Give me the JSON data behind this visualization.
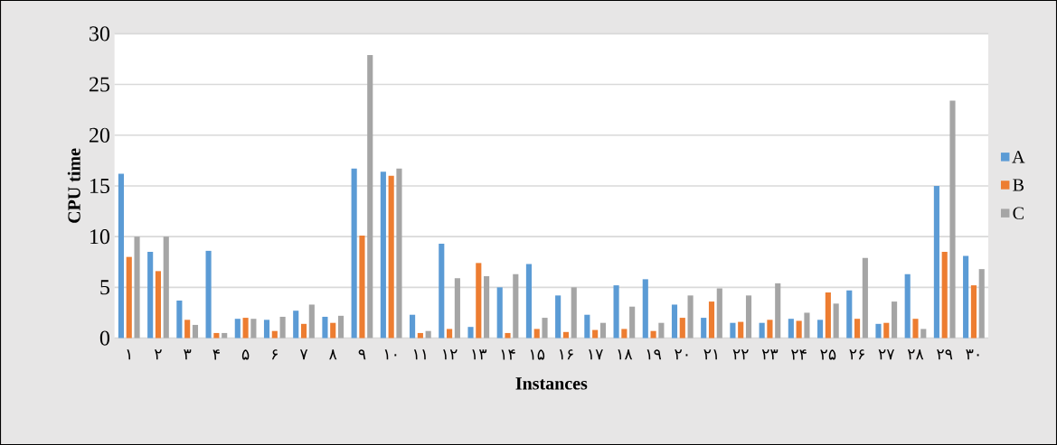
{
  "chart_data": {
    "type": "bar",
    "xlabel": "Instances",
    "ylabel": "CPU time",
    "categories": [
      "۱",
      "۲",
      "۳",
      "۴",
      "۵",
      "۶",
      "۷",
      "۸",
      "۹",
      "۱۰",
      "۱۱",
      "۱۲",
      "۱۳",
      "۱۴",
      "۱۵",
      "۱۶",
      "۱۷",
      "۱۸",
      "۱۹",
      "۲۰",
      "۲۱",
      "۲۲",
      "۲۳",
      "۲۴",
      "۲۵",
      "۲۶",
      "۲۷",
      "۲۸",
      "۲۹",
      "۳۰"
    ],
    "series": [
      {
        "name": "A",
        "color": "#5b9bd5",
        "values": [
          16.2,
          8.5,
          3.7,
          8.6,
          1.9,
          1.8,
          2.7,
          2.1,
          16.7,
          16.4,
          2.3,
          9.3,
          1.1,
          5.0,
          7.3,
          4.2,
          2.3,
          5.2,
          5.8,
          3.3,
          2.0,
          1.5,
          1.5,
          1.9,
          1.8,
          4.7,
          1.4,
          6.3,
          15.0,
          8.1
        ]
      },
      {
        "name": "B",
        "color": "#ed7d31",
        "values": [
          8.0,
          6.6,
          1.8,
          0.5,
          2.0,
          0.7,
          1.4,
          1.5,
          10.1,
          16.0,
          0.5,
          0.9,
          7.4,
          0.5,
          0.9,
          0.6,
          0.8,
          0.9,
          0.7,
          2.0,
          3.6,
          1.6,
          1.8,
          1.7,
          4.5,
          1.9,
          1.5,
          1.9,
          8.5,
          5.2
        ]
      },
      {
        "name": "C",
        "color": "#a5a5a5",
        "values": [
          10.0,
          10.0,
          1.3,
          0.5,
          1.9,
          2.1,
          3.3,
          2.2,
          27.9,
          16.7,
          0.7,
          5.9,
          6.1,
          6.3,
          2.0,
          5.0,
          1.5,
          3.1,
          1.5,
          4.2,
          4.9,
          4.2,
          5.4,
          2.5,
          3.4,
          7.9,
          3.6,
          0.9,
          23.4,
          6.8
        ]
      }
    ],
    "ylim": [
      0,
      30
    ],
    "yticks": [
      0,
      5,
      10,
      15,
      20,
      25,
      30
    ],
    "grid": "y",
    "legend": "right"
  }
}
